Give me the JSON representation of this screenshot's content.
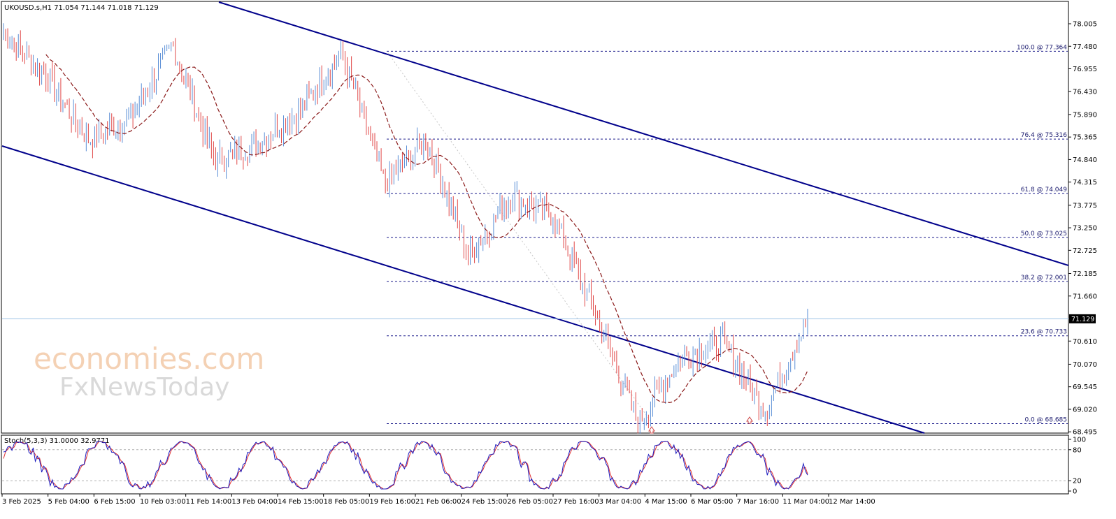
{
  "header": {
    "symbol_line": "UKOUSD.s,H1  71.054 71.144 71.018 71.129",
    "stoch_line": "Stoch(5,3,3) 31.0000 32.9771"
  },
  "watermark": {
    "line1": "economies.com",
    "line2": "FxNewsToday"
  },
  "chart_data": {
    "type": "candlestick",
    "symbol": "UKOUSD.s",
    "timeframe": "H1",
    "ohlc_last": {
      "open": 71.054,
      "high": 71.144,
      "low": 71.018,
      "close": 71.129
    },
    "current_price_label": "71.129",
    "current_price": 71.129,
    "y_ticks": [
      "78.005",
      "77.480",
      "76.955",
      "76.430",
      "75.890",
      "75.365",
      "74.840",
      "74.315",
      "73.775",
      "73.250",
      "72.725",
      "72.185",
      "71.660",
      "70.610",
      "70.070",
      "69.545",
      "69.020",
      "68.495"
    ],
    "x_ticks": [
      "3 Feb 2025",
      "5 Feb 04:00",
      "6 Feb 15:00",
      "10 Feb 03:00",
      "11 Feb 14:00",
      "13 Feb 04:00",
      "14 Feb 15:00",
      "18 Feb 05:00",
      "19 Feb 16:00",
      "21 Feb 06:00",
      "24 Feb 15:00",
      "26 Feb 05:00",
      "27 Feb 16:00",
      "3 Mar 04:00",
      "4 Mar 15:00",
      "6 Mar 05:00",
      "7 Mar 16:00",
      "11 Mar 04:00",
      "12 Mar 14:00"
    ],
    "fib_levels": [
      {
        "label": "100.0 @ 77.364",
        "price": 77.364
      },
      {
        "label": "76.4 @ 75.316",
        "price": 75.316
      },
      {
        "label": "61.8 @ 74.049",
        "price": 74.049
      },
      {
        "label": "50.0 @ 73.025",
        "price": 73.025
      },
      {
        "label": "38.2 @ 72.001",
        "price": 72.001
      },
      {
        "label": "23.6 @ 70.733",
        "price": 70.733
      },
      {
        "label": "0.0 @ 68.685",
        "price": 68.685
      }
    ],
    "price_path": [
      {
        "t": "3 Feb 2025",
        "p": 77.8
      },
      {
        "t": "5 Feb 04:00",
        "p": 76.8
      },
      {
        "t": "6 Feb 15:00",
        "p": 75.3
      },
      {
        "t": "10 Feb 03:00",
        "p": 75.8
      },
      {
        "t": "11 Feb 14:00",
        "p": 77.5
      },
      {
        "t": "13 Feb 04:00",
        "p": 74.8
      },
      {
        "t": "14 Feb 15:00",
        "p": 75.2
      },
      {
        "t": "18 Feb 05:00",
        "p": 76.0
      },
      {
        "t": "19 Feb 16:00",
        "p": 77.3
      },
      {
        "t": "21 Feb 06:00",
        "p": 74.3
      },
      {
        "t": "24 Feb 15:00",
        "p": 75.3
      },
      {
        "t": "26 Feb 05:00",
        "p": 72.6
      },
      {
        "t": "27 Feb 16:00",
        "p": 74.0
      },
      {
        "t": "3 Mar 04:00",
        "p": 73.5
      },
      {
        "t": "4 Mar 15:00",
        "p": 71.2
      },
      {
        "t": "5 Mar",
        "p": 68.7
      },
      {
        "t": "6 Mar 05:00",
        "p": 70.2
      },
      {
        "t": "7 Mar 16:00",
        "p": 70.6
      },
      {
        "t": "11 Mar 04:00",
        "p": 69.0
      },
      {
        "t": "12 Mar 14:00",
        "p": 71.129
      }
    ],
    "stochastic": {
      "name": "Stoch(5,3,3)",
      "main": 31.0,
      "signal": 32.9771,
      "y_ticks": [
        "100",
        "80",
        "20",
        "0"
      ],
      "levels": [
        80,
        20
      ]
    },
    "colors": {
      "bull": "#5b8fd6",
      "bear": "#e04848",
      "ma": "#8b1a1a",
      "channel": "#00008b",
      "fib": "#1a1a8b",
      "stoch_main": "#1c1cbf",
      "stoch_signal": "#e03030"
    }
  }
}
